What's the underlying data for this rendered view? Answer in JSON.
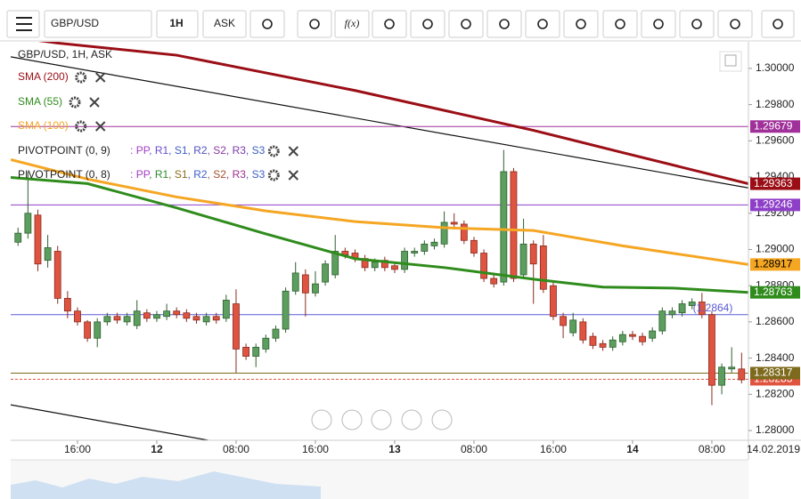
{
  "toolbar": {
    "symbol": "GBP/USD",
    "timeframe": "1H",
    "side": "ASK",
    "fx": "f(x)"
  },
  "chart_data": {
    "type": "candlestick",
    "legend_title": "GBP/USD, 1H, ASK",
    "x": [
      -6,
      -5,
      -4,
      -3,
      -2,
      -1,
      0,
      1,
      2,
      3,
      4,
      5,
      6,
      7,
      8,
      9,
      10,
      11,
      12,
      13,
      14,
      15,
      16,
      17,
      18,
      19,
      20,
      21,
      22,
      23,
      24,
      25,
      26,
      27,
      28,
      29,
      30,
      31,
      32,
      33,
      34,
      35,
      36,
      37,
      38,
      39,
      40,
      41,
      42,
      43,
      44,
      45,
      46,
      47,
      48,
      49,
      50,
      51,
      52,
      53,
      54,
      55,
      56,
      57,
      58,
      59,
      60,
      61,
      62,
      63,
      64,
      65,
      66,
      67
    ],
    "open": [
      1.2904,
      1.2909,
      1.2919,
      1.2894,
      1.2899,
      1.2873,
      1.2866,
      1.286,
      1.2851,
      1.286,
      1.2863,
      1.286,
      1.2858,
      1.2865,
      1.2862,
      1.2863,
      1.2866,
      1.2865,
      1.2863,
      1.286,
      1.2863,
      1.2862,
      1.287,
      1.2846,
      1.2841,
      1.2845,
      1.2851,
      1.2856,
      1.2877,
      1.2886,
      1.2876,
      1.2882,
      1.2886,
      1.2899,
      1.2898,
      1.2895,
      1.289,
      1.2894,
      1.2891,
      1.2889,
      1.2898,
      1.2899,
      1.2902,
      1.2903,
      1.2915,
      1.2914,
      1.2905,
      1.2898,
      1.2884,
      1.2882,
      1.2943,
      1.2886,
      1.2903,
      1.2902,
      1.288,
      1.2863,
      1.2854,
      1.286,
      1.2852,
      1.2848,
      1.2846,
      1.2849,
      1.2853,
      1.2852,
      1.2851,
      1.2855,
      1.2864,
      1.2865,
      1.2869,
      1.2871,
      1.2864,
      1.2825,
      1.2834,
      1.2834
    ],
    "high": [
      1.2912,
      1.2943,
      1.2922,
      1.2908,
      1.2902,
      1.2877,
      1.2868,
      1.2861,
      1.2862,
      1.2865,
      1.2865,
      1.2865,
      1.2872,
      1.2867,
      1.2866,
      1.287,
      1.2868,
      1.2867,
      1.2865,
      1.2865,
      1.2865,
      1.2875,
      1.2878,
      1.2848,
      1.2848,
      1.2853,
      1.2858,
      1.2879,
      1.2893,
      1.2889,
      1.2888,
      1.2894,
      1.2908,
      1.2901,
      1.29,
      1.2897,
      1.2895,
      1.2896,
      1.2893,
      1.2901,
      1.2901,
      1.2905,
      1.2906,
      1.2921,
      1.292,
      1.2916,
      1.2907,
      1.29,
      1.2886,
      1.2955,
      1.2945,
      1.2917,
      1.2905,
      1.2908,
      1.2882,
      1.2865,
      1.2865,
      1.2862,
      1.2854,
      1.285,
      1.2852,
      1.2855,
      1.2855,
      1.2854,
      1.2857,
      1.2868,
      1.2868,
      1.2872,
      1.2873,
      1.2876,
      1.2866,
      1.2837,
      1.2846,
      1.2843
    ],
    "low": [
      1.2902,
      1.2906,
      1.2888,
      1.289,
      1.287,
      1.2862,
      1.2858,
      1.2849,
      1.2846,
      1.2858,
      1.2859,
      1.2858,
      1.2856,
      1.286,
      1.286,
      1.2861,
      1.2862,
      1.286,
      1.2859,
      1.2858,
      1.2859,
      1.286,
      1.2832,
      1.2839,
      1.2835,
      1.2843,
      1.2849,
      1.2854,
      1.2875,
      1.2863,
      1.2874,
      1.288,
      1.2884,
      1.2895,
      1.2893,
      1.2888,
      1.2888,
      1.2888,
      1.2887,
      1.2887,
      1.2896,
      1.2897,
      1.29,
      1.2901,
      1.2912,
      1.2903,
      1.2896,
      1.2882,
      1.2879,
      1.288,
      1.2882,
      1.2884,
      1.287,
      1.2876,
      1.2861,
      1.2851,
      1.2852,
      1.2848,
      1.2845,
      1.2844,
      1.2844,
      1.2847,
      1.285,
      1.2847,
      1.2849,
      1.2853,
      1.2862,
      1.2863,
      1.2867,
      1.2862,
      1.2814,
      1.282,
      1.2832,
      1.2826
    ],
    "close": [
      1.2909,
      1.292,
      1.2892,
      1.2901,
      1.2873,
      1.2866,
      1.286,
      1.2851,
      1.286,
      1.2863,
      1.2861,
      1.2863,
      1.2866,
      1.2862,
      1.2864,
      1.2866,
      1.2864,
      1.2862,
      1.2861,
      1.2863,
      1.2861,
      1.2872,
      1.2845,
      1.2841,
      1.2846,
      1.2851,
      1.2856,
      1.2877,
      1.2887,
      1.2876,
      1.2881,
      1.2892,
      1.2899,
      1.2897,
      1.2895,
      1.289,
      1.2893,
      1.289,
      1.2889,
      1.2899,
      1.2899,
      1.2903,
      1.2904,
      1.2915,
      1.2914,
      1.2905,
      1.2898,
      1.2884,
      1.2881,
      1.2943,
      1.2884,
      1.2903,
      1.2892,
      1.2878,
      1.2863,
      1.2858,
      1.2861,
      1.285,
      1.2847,
      1.2846,
      1.285,
      1.2853,
      1.2852,
      1.2849,
      1.2855,
      1.2866,
      1.2866,
      1.287,
      1.2871,
      1.2864,
      1.2825,
      1.2835,
      1.2835,
      1.2828
    ],
    "up_color": "#5c9e5e",
    "down_color": "#df5440",
    "xlim": [
      -6.74,
      67.69
    ],
    "xticks": [
      {
        "value": 0,
        "label": "16:00"
      },
      {
        "value": 8,
        "label": "12"
      },
      {
        "value": 16,
        "label": "08:00"
      },
      {
        "value": 24,
        "label": "16:00"
      },
      {
        "value": 32,
        "label": "13"
      },
      {
        "value": 40,
        "label": "08:00"
      },
      {
        "value": 48,
        "label": "16:00"
      },
      {
        "value": 56,
        "label": "14"
      },
      {
        "value": 64,
        "label": "08:00"
      }
    ],
    "date_label": "14.02.2019",
    "ylim": [
      1.27946,
      1.30147
    ],
    "yticks": [
      {
        "value": 1.28,
        "label": "1.28000"
      },
      {
        "value": 1.282,
        "label": "1.28200"
      },
      {
        "value": 1.284,
        "label": "1.28400"
      },
      {
        "value": 1.286,
        "label": "1.28600"
      },
      {
        "value": 1.288,
        "label": "1.28800"
      },
      {
        "value": 1.29,
        "label": "1.29000"
      },
      {
        "value": 1.292,
        "label": "1.29200"
      },
      {
        "value": 1.294,
        "label": "1.29400"
      },
      {
        "value": 1.296,
        "label": "1.29600"
      },
      {
        "value": 1.298,
        "label": "1.29800"
      },
      {
        "value": 1.3,
        "label": "1.30000"
      }
    ],
    "indicators": [
      {
        "name": "SMA (200)",
        "color": "#9b0e16",
        "x": [
          -6.74,
          -2,
          10,
          28,
          46,
          55,
          67.69
        ],
        "values": [
          1.30175,
          1.3014,
          1.30073,
          1.29878,
          1.29658,
          1.29535,
          1.29363
        ]
      },
      {
        "name": "SMA (55)",
        "color": "#2f8c1c",
        "x": [
          -6.74,
          1,
          10,
          19,
          28,
          37,
          46,
          53,
          60,
          67.69
        ],
        "values": [
          1.29398,
          1.29364,
          1.2923,
          1.29086,
          1.28949,
          1.289,
          1.28836,
          1.28792,
          1.28787,
          1.28763
        ]
      },
      {
        "name": "SMA (100)",
        "color": "#f5a623",
        "x": [
          -6.74,
          1,
          10,
          19,
          28,
          37,
          46,
          55,
          67.69
        ],
        "values": [
          1.29496,
          1.29389,
          1.2929,
          1.29213,
          1.29154,
          1.2912,
          1.29105,
          1.2902,
          1.28917
        ]
      }
    ],
    "pivot_legends": [
      {
        "name": "PIVOTPOINT (0, 9)",
        "prefix": ":",
        "separator": ", ",
        "items": [
          {
            "text": "PP",
            "color": "#a43bc4"
          },
          {
            "text": "R1",
            "color": "#6a4bd0"
          },
          {
            "text": "S1",
            "color": "#3d5fc8"
          },
          {
            "text": "R2",
            "color": "#5050c0"
          },
          {
            "text": "S2",
            "color": "#8c3aa0"
          },
          {
            "text": "R3",
            "color": "#7a3aa8"
          },
          {
            "text": "S3",
            "color": "#3a5fb8"
          }
        ]
      },
      {
        "name": "PIVOTPOINT (0, 8)",
        "prefix": ":",
        "separator": ", ",
        "items": [
          {
            "text": "PP",
            "color": "#a43bc4"
          },
          {
            "text": "R1",
            "color": "#2e8b2e"
          },
          {
            "text": "S1",
            "color": "#8b6a1a"
          },
          {
            "text": "R2",
            "color": "#3d5fc8"
          },
          {
            "text": "S2",
            "color": "#a0522d"
          },
          {
            "text": "R3",
            "color": "#9b2e8e"
          },
          {
            "text": "S3",
            "color": "#3d5fc8"
          }
        ]
      }
    ],
    "levels": [
      {
        "value": 1.29679,
        "color": "#a0309a"
      },
      {
        "value": 1.29246,
        "color": "#8e3fc8"
      },
      {
        "value": 1.2864,
        "color": "#5a5ad6",
        "label": "(1.2864)"
      },
      {
        "value": 1.28283,
        "color": "#e0533f",
        "dashed": true
      },
      {
        "value": 1.28317,
        "color": "#7d6a1c"
      }
    ],
    "trendlines": [
      {
        "x": [
          -6.74,
          67.69
        ],
        "values": [
          1.30064,
          1.2934
        ]
      },
      {
        "x": [
          -6.74,
          13.2
        ],
        "values": [
          1.28142,
          1.27946
        ]
      }
    ]
  }
}
